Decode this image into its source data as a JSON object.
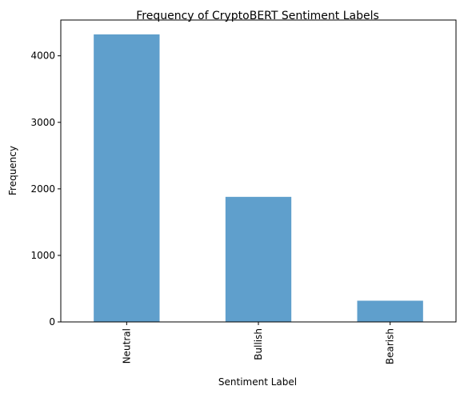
{
  "chart_data": {
    "type": "bar",
    "title": "Frequency of CryptoBERT Sentiment Labels",
    "xlabel": "Sentiment Label",
    "ylabel": "Frequency",
    "categories": [
      "Neutral",
      "Bullish",
      "Bearish"
    ],
    "values": [
      4322,
      1880,
      319
    ],
    "ylim": [
      0,
      4538
    ],
    "yticks": [
      0,
      1000,
      2000,
      3000,
      4000
    ],
    "bar_color": "#5f9fcc",
    "grid": false,
    "legend": "none"
  }
}
